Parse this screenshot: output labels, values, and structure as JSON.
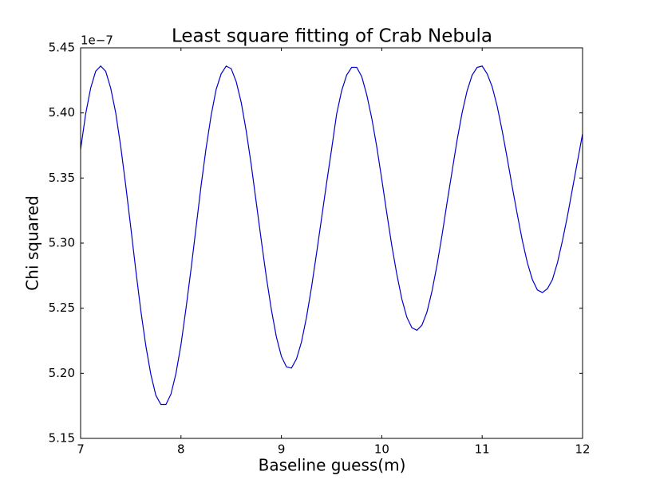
{
  "chart_data": {
    "type": "line",
    "title": "Least square fitting of Crab Nebula",
    "x_label": "Baseline guess(m)",
    "y_label": "Chi squared",
    "y_offset_label": "1e−7",
    "xlim": [
      7,
      12
    ],
    "ylim": [
      5.15,
      5.45
    ],
    "xticks": [
      7,
      8,
      9,
      10,
      11,
      12
    ],
    "yticks": [
      5.15,
      {
        "value": 5.2,
        "label": "5.20"
      },
      5.25,
      {
        "value": 5.3,
        "label": "5.30"
      },
      5.35,
      {
        "value": 5.4,
        "label": "5.40"
      },
      5.45
    ],
    "x": [
      7,
      7.05,
      7.1,
      7.15,
      7.2,
      7.25,
      7.3,
      7.35,
      7.4,
      7.45,
      7.5,
      7.55,
      7.6,
      7.65,
      7.7,
      7.75,
      7.8,
      7.85,
      7.9,
      7.95,
      8,
      8.05,
      8.1,
      8.15,
      8.2,
      8.25,
      8.3,
      8.35,
      8.4,
      8.45,
      8.5,
      8.55,
      8.6,
      8.65,
      8.7,
      8.75,
      8.8,
      8.85,
      8.9,
      8.95,
      9,
      9.05,
      9.1,
      9.15,
      9.2,
      9.25,
      9.3,
      9.35,
      9.4,
      9.45,
      9.5,
      9.55,
      9.6,
      9.65,
      9.7,
      9.75,
      9.8,
      9.85,
      9.9,
      9.95,
      10,
      10.05,
      10.1,
      10.15,
      10.2,
      10.25,
      10.3,
      10.35,
      10.4,
      10.45,
      10.5,
      10.55,
      10.6,
      10.65,
      10.7,
      10.75,
      10.8,
      10.85,
      10.9,
      10.95,
      11,
      11.05,
      11.1,
      11.15,
      11.2,
      11.25,
      11.3,
      11.35,
      11.4,
      11.45,
      11.5,
      11.55,
      11.6,
      11.65,
      11.7,
      11.75,
      11.8,
      11.85,
      11.9,
      11.95,
      12
    ],
    "series": [
      {
        "color": "#0000cc",
        "values": [
          5.372,
          5.399,
          5.419,
          5.432,
          5.436,
          5.432,
          5.419,
          5.4,
          5.374,
          5.344,
          5.312,
          5.279,
          5.248,
          5.221,
          5.199,
          5.183,
          5.176,
          5.176,
          5.184,
          5.2,
          5.222,
          5.25,
          5.28,
          5.312,
          5.344,
          5.373,
          5.398,
          5.418,
          5.43,
          5.436,
          5.434,
          5.424,
          5.408,
          5.386,
          5.36,
          5.331,
          5.302,
          5.274,
          5.249,
          5.228,
          5.213,
          5.205,
          5.204,
          5.211,
          5.224,
          5.243,
          5.266,
          5.292,
          5.319,
          5.346,
          5.372,
          5.399,
          5.417,
          5.429,
          5.435,
          5.435,
          5.428,
          5.414,
          5.396,
          5.374,
          5.349,
          5.323,
          5.298,
          5.276,
          5.257,
          5.243,
          5.235,
          5.233,
          5.237,
          5.247,
          5.263,
          5.283,
          5.306,
          5.331,
          5.355,
          5.379,
          5.4,
          5.417,
          5.429,
          5.435,
          5.436,
          5.43,
          5.42,
          5.405,
          5.386,
          5.365,
          5.343,
          5.322,
          5.302,
          5.285,
          5.272,
          5.264,
          5.262,
          5.265,
          5.272,
          5.285,
          5.302,
          5.321,
          5.342,
          5.363,
          5.384
        ]
      }
    ]
  }
}
